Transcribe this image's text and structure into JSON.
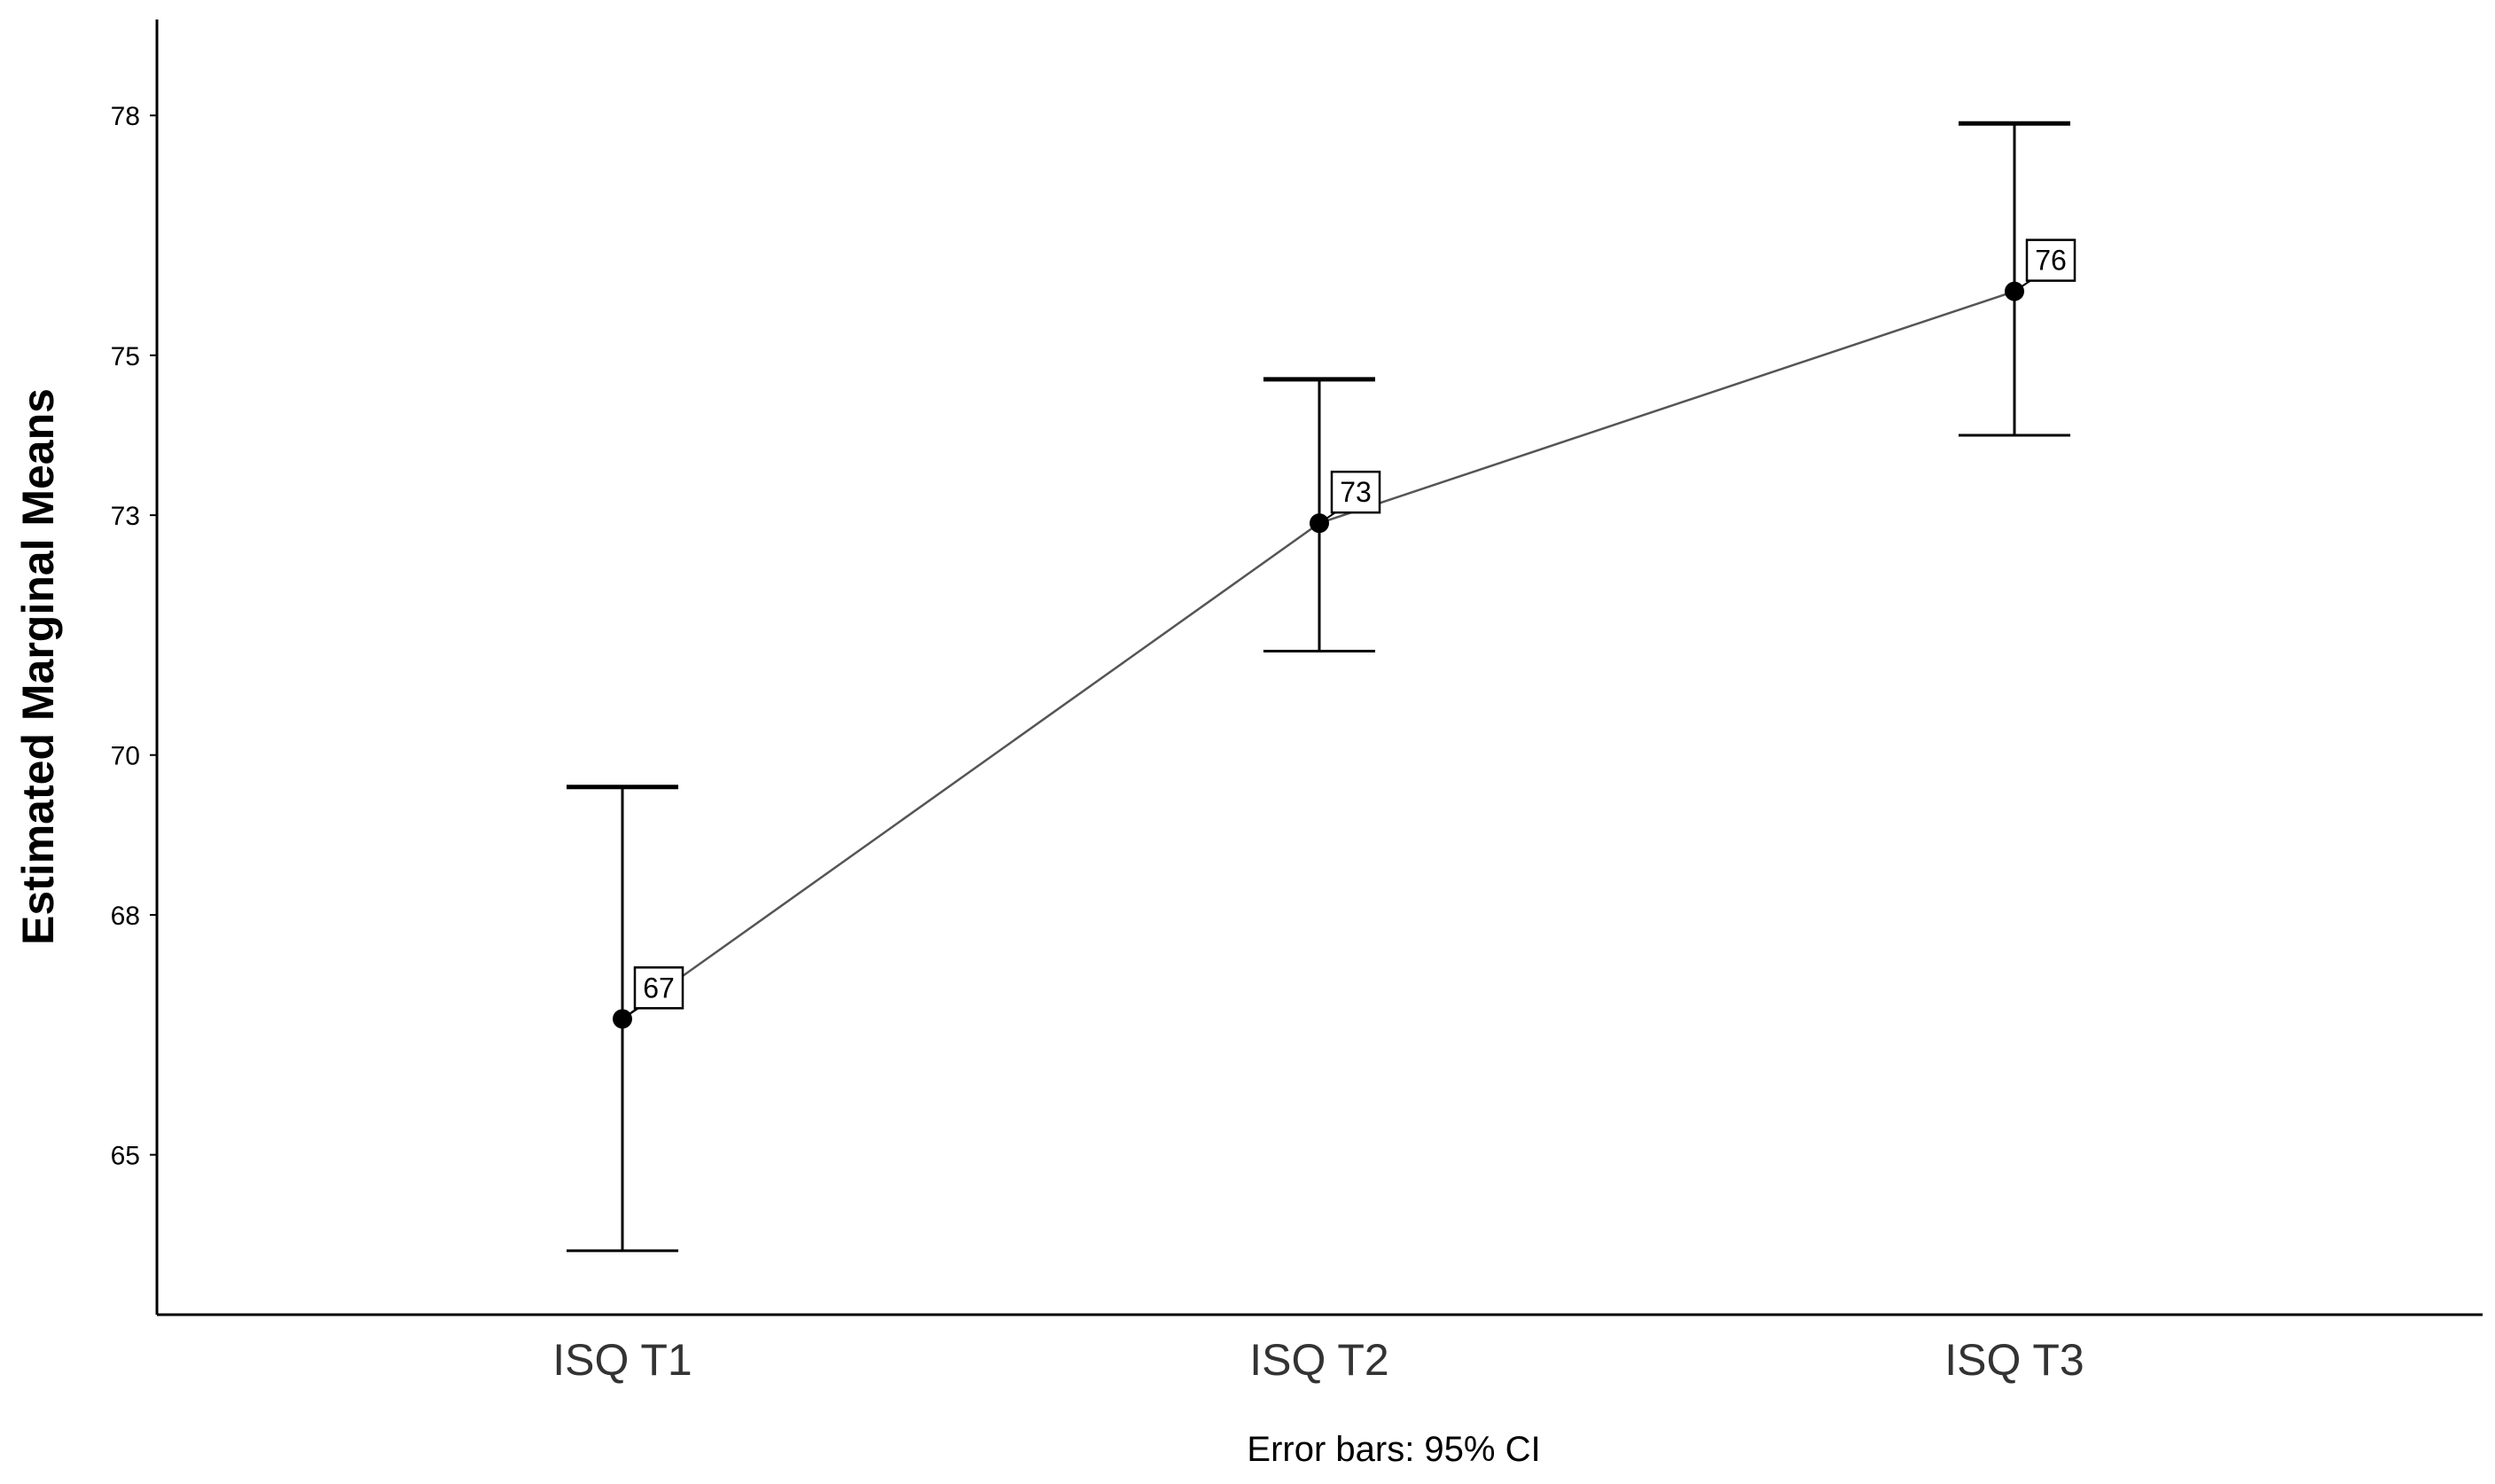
{
  "chart_data": {
    "type": "line",
    "title": "",
    "xlabel": "",
    "ylabel": "Estimated Marginal Means",
    "footnote": "Error bars: 95% CI",
    "categories": [
      "ISQ T1",
      "ISQ T2",
      "ISQ T3"
    ],
    "series": [
      {
        "values": [
          66.7,
          72.9,
          75.8
        ],
        "ci_lower": [
          63.8,
          71.3,
          74.0
        ],
        "ci_upper": [
          69.6,
          74.7,
          77.9
        ],
        "data_labels": [
          "67",
          "73",
          "76"
        ]
      }
    ],
    "y_ticks": [
      65,
      68,
      70,
      73,
      75,
      78
    ],
    "y_tick_labels": [
      "65",
      "68",
      "70",
      "73",
      "75",
      "78"
    ],
    "ylim": [
      63.0,
      79.2
    ],
    "grid": false,
    "legend": "none",
    "colors": {
      "line": "#555555",
      "marker": "#000000",
      "error_bar": "#000000",
      "axis": "#000000"
    }
  }
}
